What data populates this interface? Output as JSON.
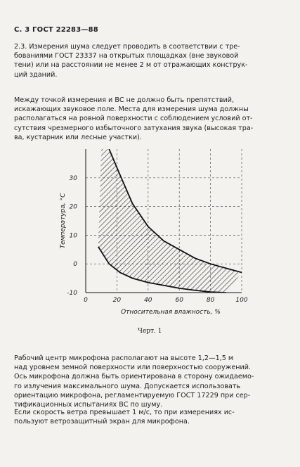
{
  "header": {
    "text": "С. 3 ГОСТ 22283—88"
  },
  "paragraphs": {
    "p1": [
      "2.3. Измерения шума следует проводить в соответствии с тре-",
      "бованиями ГОСТ 23337 на открытых площадках (вне звуковой",
      "тени) или на расстоянии не менее 2 м от отражающих конструк-",
      "ций зданий."
    ],
    "p2": [
      "Между точкой измерения и ВС не должно быть препятствий,",
      "искажающих звуковое поле. Места для измерения шума должны",
      "располагаться на ровной поверхности с соблюдением условий от-",
      "сутствия чрезмерного избыточного затухания звука (высокая тра-",
      "ва, кустарник или лесные участки)."
    ],
    "p3": [
      "Рабочий центр микрофона располагают на высоте 1,2—1,5 м",
      "над уровнем земной поверхности или поверхностью сооружений.",
      "Ось микрофона должна быть ориентирована в сторону ожидаемо-",
      "го излучения максимального шума. Допускается использовать",
      "ориентацию микрофона, регламентируемую ГОСТ 17229 при сер-",
      "тификационных испытаниях ВС по шуму."
    ],
    "p4": [
      "Если скорость ветра превышает 1 м/с, то при измерениях ис-",
      "пользуют ветрозащитный экран для микрофона."
    ]
  },
  "chart_data": {
    "type": "area",
    "xlabel": "Относительная влажность, %",
    "ylabel": "Температура, °С",
    "xlim": [
      0,
      100
    ],
    "ylim": [
      -10,
      40
    ],
    "xticks": [
      0,
      20,
      40,
      60,
      80,
      100
    ],
    "yticks": [
      -10,
      0,
      10,
      20,
      30
    ],
    "grid": true,
    "upper_boundary": {
      "x": [
        15,
        22,
        30,
        40,
        50,
        60,
        70,
        80,
        90,
        100
      ],
      "y": [
        40,
        31,
        21,
        13,
        8,
        5,
        2,
        0,
        -1.5,
        -3
      ]
    },
    "lower_boundary": {
      "x": [
        10,
        15,
        20,
        30,
        40,
        50,
        60,
        70,
        80,
        90
      ],
      "y": [
        40,
        40,
        40,
        40,
        40,
        40,
        40,
        40,
        40,
        40
      ]
    },
    "band_upper": {
      "x": [
        15,
        22,
        30,
        40,
        50,
        60,
        70,
        80,
        90,
        100
      ],
      "y": [
        40,
        31,
        21,
        13,
        8,
        5,
        2,
        0,
        -1.5,
        -3
      ]
    },
    "band_lower": {
      "x": [
        8,
        15,
        22,
        30,
        40,
        50,
        60,
        70,
        80,
        90
      ],
      "y": [
        6,
        0,
        -3,
        -5,
        -6.5,
        -7.5,
        -8.5,
        -9.2,
        -9.8,
        -10
      ]
    }
  },
  "caption": {
    "text": "Черт. 1"
  }
}
